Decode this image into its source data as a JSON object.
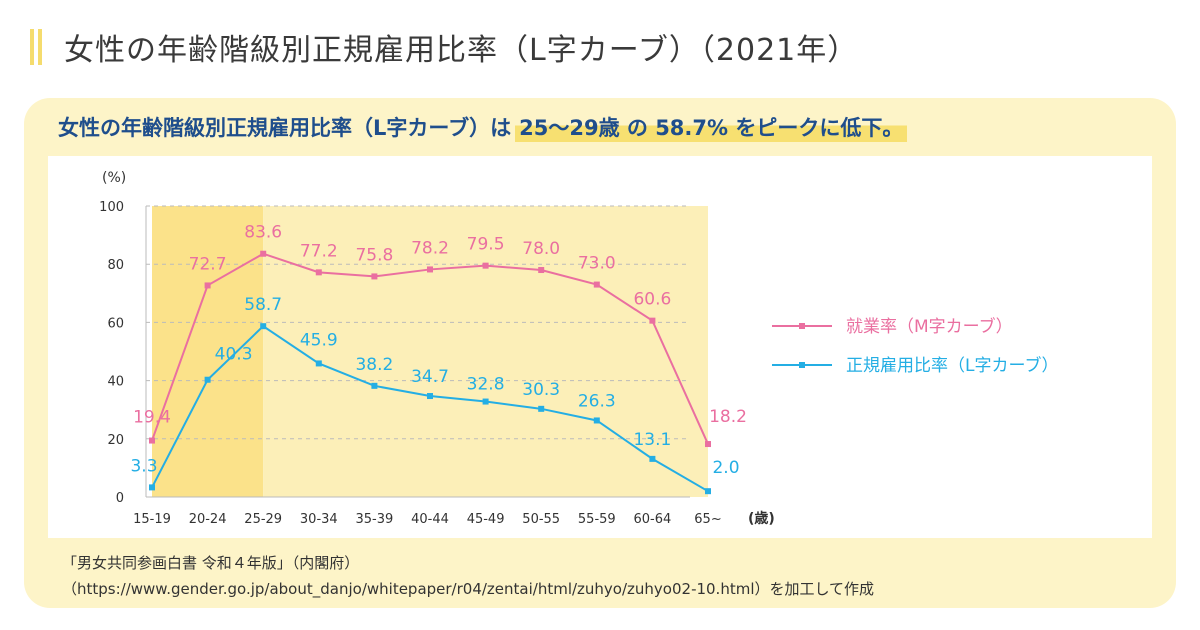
{
  "title": "女性の年齢階級別正規雇用比率（L字カーブ）（2021年）",
  "subtitle": {
    "lead": "女性の年齢階級別正規雇用比率（L字カーブ）は",
    "highlight": "25～29歳 の 58.7% をピークに低下。"
  },
  "colors": {
    "pink": "#ea6fa0",
    "blue": "#24aee4",
    "highlight_dark": "#fbe28a",
    "highlight_light": "#fcefb8"
  },
  "chart_data": {
    "type": "line",
    "categories": [
      "15-19",
      "20-24",
      "25-29",
      "30-34",
      "35-39",
      "40-44",
      "45-49",
      "50-55",
      "55-59",
      "60-64",
      "65~"
    ],
    "series": [
      {
        "name": "就業率（M字カーブ）",
        "color": "#ea6fa0",
        "values": [
          19.4,
          72.7,
          83.6,
          77.2,
          75.8,
          78.2,
          79.5,
          78.0,
          73.0,
          60.6,
          18.2
        ]
      },
      {
        "name": "正規雇用比率（L字カーブ）",
        "color": "#24aee4",
        "values": [
          3.3,
          40.3,
          58.7,
          45.9,
          38.2,
          34.7,
          32.8,
          30.3,
          26.3,
          13.1,
          2.0
        ]
      }
    ],
    "ylabel": "(%)",
    "xlabel": "(歳)",
    "ylim": [
      0,
      100
    ],
    "yticks": [
      0,
      20,
      40,
      60,
      80,
      100
    ],
    "legend_position": "right"
  },
  "source": {
    "line1": "「男女共同参画白書 令和４年版」（内閣府）",
    "line2": "（https://www.gender.go.jp/about_danjo/whitepaper/r04/zentai/html/zuhyo/zuhyo02-10.html）を加工して作成"
  }
}
